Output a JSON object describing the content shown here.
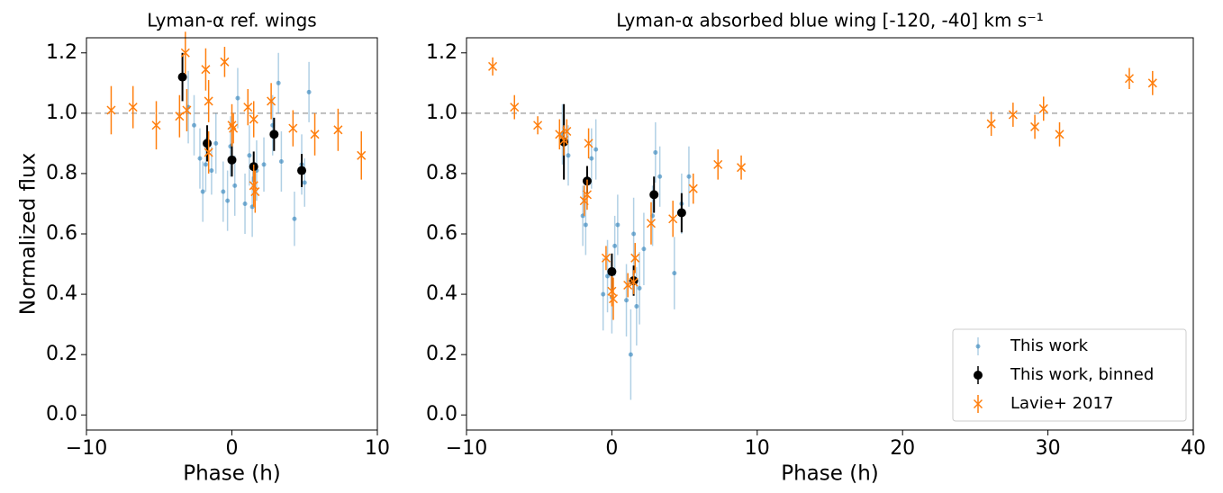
{
  "chart_data": [
    {
      "type": "scatter",
      "title": "Lyman-α ref. wings",
      "xlabel": "Phase (h)",
      "ylabel": "Normalized flux",
      "xlim": [
        -10,
        10
      ],
      "ylim": [
        -0.05,
        1.25
      ],
      "xticks": [
        {
          "value": -10,
          "label": "−10"
        },
        0,
        10
      ],
      "yticks": [
        {
          "value": 0,
          "label": "0.0"
        },
        0.2,
        0.4,
        0.6,
        0.8,
        {
          "value": 1,
          "label": "1.0"
        },
        1.2
      ],
      "refline": 1,
      "legend": false,
      "series": [
        {
          "color": "#1f77b4",
          "alpha": 0.35,
          "marker": ".",
          "x": [
            -3.0,
            -2.6,
            -2.2,
            -2.0,
            -1.8,
            -1.4,
            -1.1,
            -0.6,
            -0.3,
            -0.1,
            0.2,
            0.4,
            0.9,
            1.2,
            1.4,
            1.7,
            2.2,
            2.8,
            3.2,
            3.4,
            4.3,
            4.8,
            5.3,
            5.0
          ],
          "values": [
            1.02,
            0.96,
            0.85,
            0.74,
            0.83,
            0.81,
            0.9,
            0.74,
            0.71,
            0.89,
            0.76,
            1.05,
            0.7,
            0.86,
            0.69,
            0.81,
            0.83,
            0.96,
            1.1,
            0.84,
            0.65,
            0.83,
            1.07,
            0.77
          ],
          "errors": [
            0.12,
            0.1,
            0.1,
            0.1,
            0.09,
            0.08,
            0.1,
            0.1,
            0.1,
            0.1,
            0.1,
            0.1,
            0.1,
            0.1,
            0.1,
            0.1,
            0.09,
            0.1,
            0.1,
            0.1,
            0.09,
            0.1,
            0.1,
            0.08
          ]
        },
        {
          "color": "#000000",
          "alpha": 1,
          "marker": "o",
          "x": [
            -3.4,
            -1.7,
            0,
            1.5,
            2.9,
            4.8
          ],
          "values": [
            1.12,
            0.9,
            0.845,
            0.823,
            0.93,
            0.81
          ],
          "errors": [
            0.08,
            0.06,
            0.055,
            0.05,
            0.055,
            0.055
          ]
        },
        {
          "color": "#ff7f0e",
          "alpha": 1,
          "marker": "x",
          "x": [
            -8.3,
            -6.8,
            -5.2,
            -3.6,
            -3.2,
            -3.1,
            -1.8,
            -1.6,
            -1.6,
            -0.5,
            0,
            0.1,
            1.1,
            1.5,
            1.5,
            1.6,
            2.7,
            4.2,
            5.7,
            7.3,
            8.9
          ],
          "values": [
            1.01,
            1.02,
            0.96,
            0.99,
            1.2,
            1.01,
            1.145,
            1.04,
            0.87,
            1.17,
            0.96,
            0.95,
            1.02,
            0.98,
            0.76,
            0.74,
            1.04,
            0.95,
            0.93,
            0.945,
            0.86
          ],
          "errors": [
            0.08,
            0.07,
            0.08,
            0.07,
            0.07,
            0.07,
            0.07,
            0.07,
            0.07,
            0.05,
            0.07,
            0.05,
            0.06,
            0.06,
            0.07,
            0.07,
            0.06,
            0.06,
            0.07,
            0.07,
            0.08
          ]
        }
      ]
    },
    {
      "type": "scatter",
      "title": "Lyman-α absorbed blue wing [-120, -40] km s⁻¹",
      "xlabel": "Phase (h)",
      "xlim": [
        -10,
        40
      ],
      "ylim": [
        -0.05,
        1.25
      ],
      "xticks": [
        {
          "value": -10,
          "label": "−10"
        },
        0,
        10,
        20,
        30,
        40
      ],
      "yticks": [
        {
          "value": 0,
          "label": "0.0"
        },
        0.2,
        0.4,
        0.6,
        0.8,
        {
          "value": 1,
          "label": "1.0"
        },
        1.2
      ],
      "refline": 1,
      "legend": "lower right",
      "series": [
        {
          "name": "This work",
          "color": "#1f77b4",
          "alpha": 0.35,
          "marker": ".",
          "x": [
            -3.4,
            -3.0,
            -2.0,
            -1.8,
            -1.4,
            -1.1,
            -0.6,
            -0.3,
            0,
            0.2,
            0.4,
            1.0,
            1.3,
            1.5,
            1.7,
            1.9,
            2.2,
            2.8,
            3.0,
            3.3,
            4.3,
            4.8,
            5.3
          ],
          "values": [
            0.93,
            0.86,
            0.66,
            0.63,
            0.85,
            0.88,
            0.4,
            0.46,
            0.39,
            0.56,
            0.63,
            0.38,
            0.2,
            0.6,
            0.36,
            0.42,
            0.55,
            0.66,
            0.87,
            0.79,
            0.47,
            0.7,
            0.79
          ],
          "errors": [
            0.1,
            0.1,
            0.1,
            0.1,
            0.1,
            0.1,
            0.12,
            0.12,
            0.12,
            0.1,
            0.1,
            0.12,
            0.15,
            0.12,
            0.13,
            0.12,
            0.12,
            0.1,
            0.1,
            0.1,
            0.12,
            0.1,
            0.1
          ]
        },
        {
          "name": "This work, binned",
          "color": "#000000",
          "alpha": 1,
          "marker": "o",
          "x": [
            -3.3,
            -1.7,
            0,
            1.5,
            2.9,
            4.8
          ],
          "values": [
            0.905,
            0.775,
            0.475,
            0.445,
            0.73,
            0.67
          ],
          "errors": [
            0.125,
            0.05,
            0.06,
            0.05,
            0.06,
            0.065
          ]
        },
        {
          "name": "Lavie+ 2017",
          "color": "#ff7f0e",
          "alpha": 1,
          "marker": "x",
          "x": [
            -8.2,
            -6.7,
            -5.1,
            -3.6,
            -3.3,
            -3.1,
            -1.9,
            -1.7,
            -1.6,
            -0.4,
            0,
            0.1,
            1.1,
            1.5,
            1.6,
            2.7,
            4.2,
            5.6,
            7.3,
            8.9,
            26.1,
            27.6,
            29.1,
            29.7,
            30.8,
            35.6,
            37.2
          ],
          "values": [
            1.155,
            1.02,
            0.96,
            0.93,
            0.91,
            0.94,
            0.71,
            0.73,
            0.9,
            0.52,
            0.41,
            0.385,
            0.43,
            0.44,
            0.52,
            0.635,
            0.65,
            0.75,
            0.83,
            0.82,
            0.965,
            0.995,
            0.955,
            1.015,
            0.93,
            1.115,
            1.1
          ],
          "errors": [
            0.03,
            0.04,
            0.03,
            0.05,
            0.05,
            0.04,
            0.05,
            0.05,
            0.05,
            0.04,
            0.05,
            0.07,
            0.04,
            0.04,
            0.05,
            0.07,
            0.06,
            0.05,
            0.05,
            0.04,
            0.04,
            0.04,
            0.04,
            0.04,
            0.04,
            0.035,
            0.04
          ]
        }
      ]
    }
  ]
}
